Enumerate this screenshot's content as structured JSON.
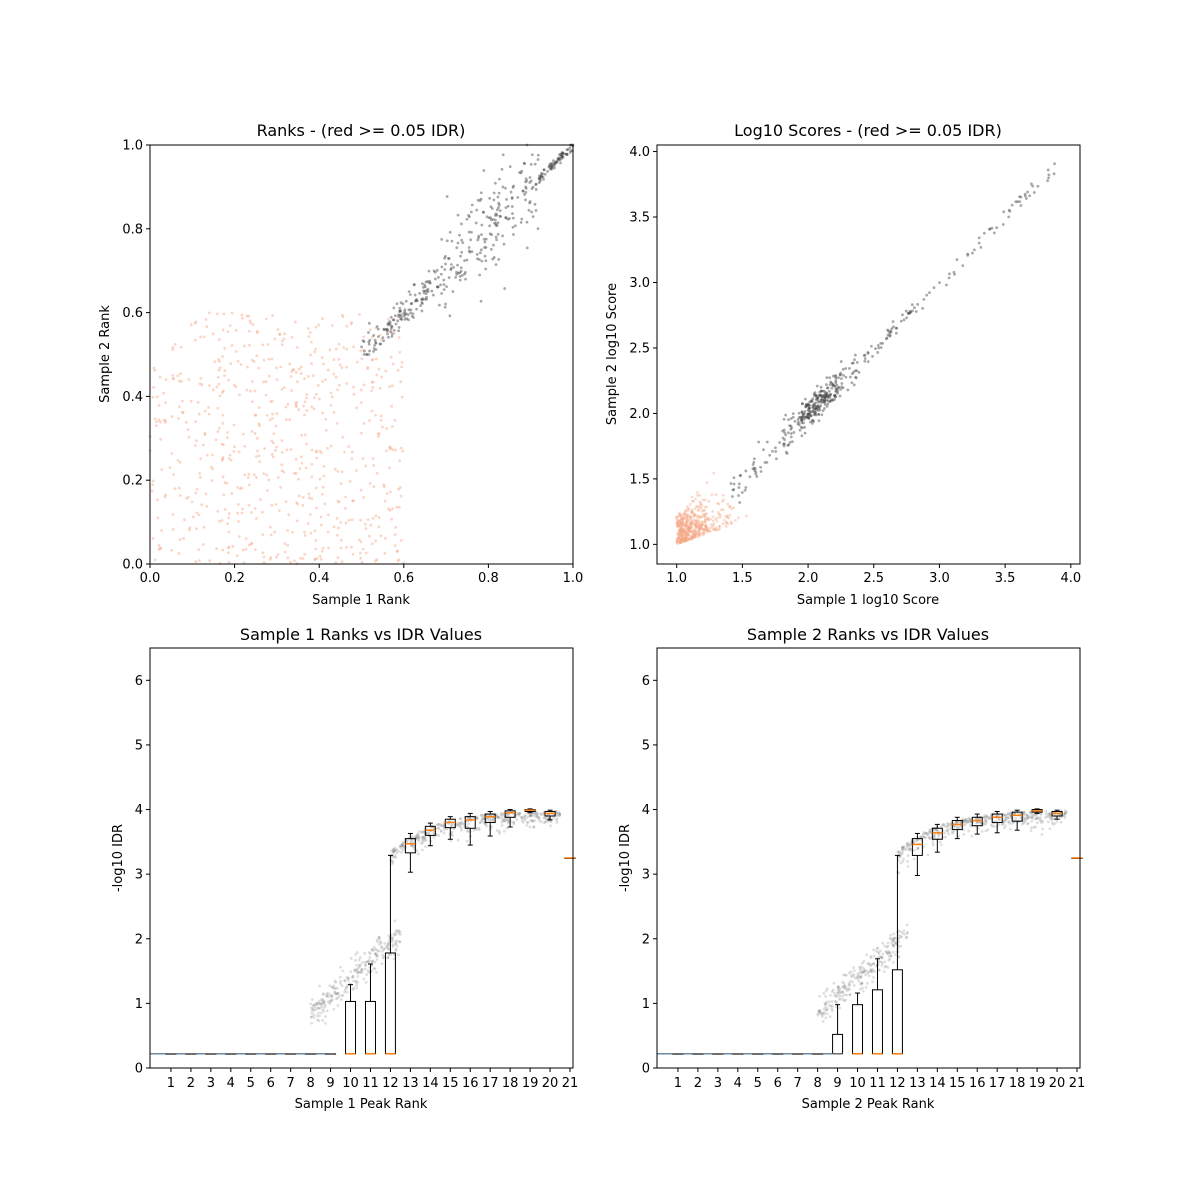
{
  "chart_data": [
    {
      "type": "scatter",
      "title": "Ranks - (red >= 0.05 IDR)",
      "xlabel": "Sample 1 Rank",
      "ylabel": "Sample 2 Rank",
      "xlim": [
        0,
        1
      ],
      "ylim": [
        0,
        1
      ],
      "xticks": [
        "0.0",
        "0.2",
        "0.4",
        "0.6",
        "0.8",
        "1.0"
      ],
      "yticks": [
        "0.0",
        "0.2",
        "0.4",
        "0.6",
        "0.8",
        "1.0"
      ],
      "grid": false,
      "colors": {
        "high_idr": "#f4a582",
        "low_idr": "#404040"
      },
      "series": [
        {
          "group": "red",
          "x_range": [
            0.0,
            0.6
          ],
          "y_range": [
            0.0,
            0.6
          ],
          "approx_count": 650
        },
        {
          "group": "black",
          "trend": "y ≈ x",
          "x_range": [
            0.5,
            1.0
          ],
          "approx_count": 420
        }
      ]
    },
    {
      "type": "scatter",
      "title": "Log10 Scores - (red >= 0.05 IDR)",
      "xlabel": "Sample 1 log10 Score",
      "ylabel": "Sample 2 log10 Score",
      "xlim": [
        0.85,
        4.07
      ],
      "ylim": [
        0.85,
        4.05
      ],
      "xticks": [
        "1.0",
        "1.5",
        "2.0",
        "2.5",
        "3.0",
        "3.5",
        "4.0"
      ],
      "yticks": [
        "1.0",
        "1.5",
        "2.0",
        "2.5",
        "3.0",
        "3.5",
        "4.0"
      ],
      "grid": false,
      "colors": {
        "high_idr": "#f4a582",
        "low_idr": "#404040"
      },
      "series": [
        {
          "group": "red",
          "center": [
            1.15,
            1.15
          ],
          "x_range": [
            1.0,
            1.6
          ],
          "y_range": [
            1.0,
            1.55
          ],
          "approx_count": 450
        },
        {
          "group": "black",
          "trend": "y ≈ x",
          "dense_center": [
            2.05,
            2.05
          ],
          "x_range": [
            1.4,
            3.9
          ],
          "approx_count": 420
        }
      ]
    },
    {
      "type": "box",
      "title": "Sample 1 Ranks vs IDR Values",
      "xlabel": "Sample 1 Peak Rank",
      "ylabel": "-log10 IDR",
      "ylim": [
        0,
        6.5
      ],
      "yticks": [
        "0",
        "1",
        "2",
        "3",
        "4",
        "5",
        "6"
      ],
      "categories": [
        "1",
        "2",
        "3",
        "4",
        "5",
        "6",
        "7",
        "8",
        "9",
        "10",
        "11",
        "12",
        "13",
        "14",
        "15",
        "16",
        "17",
        "18",
        "19",
        "20",
        "21"
      ],
      "boxes": [
        {
          "q1": 0.22,
          "median": 0.22,
          "q3": 0.22,
          "whislo": 0.22,
          "whishi": 0.22
        },
        {
          "q1": 0.22,
          "median": 0.22,
          "q3": 0.22,
          "whislo": 0.22,
          "whishi": 0.22
        },
        {
          "q1": 0.22,
          "median": 0.22,
          "q3": 0.22,
          "whislo": 0.22,
          "whishi": 0.22
        },
        {
          "q1": 0.22,
          "median": 0.22,
          "q3": 0.22,
          "whislo": 0.22,
          "whishi": 0.22
        },
        {
          "q1": 0.22,
          "median": 0.22,
          "q3": 0.22,
          "whislo": 0.22,
          "whishi": 0.22
        },
        {
          "q1": 0.22,
          "median": 0.22,
          "q3": 0.22,
          "whislo": 0.22,
          "whishi": 0.22
        },
        {
          "q1": 0.22,
          "median": 0.22,
          "q3": 0.22,
          "whislo": 0.22,
          "whishi": 0.22
        },
        {
          "q1": 0.22,
          "median": 0.22,
          "q3": 0.22,
          "whislo": 0.22,
          "whishi": 0.22
        },
        {
          "q1": 0.22,
          "median": 0.22,
          "q3": 0.22,
          "whislo": 0.22,
          "whishi": 0.22
        },
        {
          "q1": 0.22,
          "median": 0.22,
          "q3": 1.03,
          "whislo": 0.22,
          "whishi": 1.29
        },
        {
          "q1": 0.22,
          "median": 0.22,
          "q3": 1.03,
          "whislo": 0.22,
          "whishi": 1.61
        },
        {
          "q1": 0.22,
          "median": 0.22,
          "q3": 1.78,
          "whislo": 0.22,
          "whishi": 3.29
        },
        {
          "q1": 3.33,
          "median": 3.47,
          "q3": 3.55,
          "whislo": 3.03,
          "whishi": 3.63
        },
        {
          "q1": 3.6,
          "median": 3.68,
          "q3": 3.74,
          "whislo": 3.44,
          "whishi": 3.79
        },
        {
          "q1": 3.72,
          "median": 3.8,
          "q3": 3.85,
          "whislo": 3.54,
          "whishi": 3.89
        },
        {
          "q1": 3.71,
          "median": 3.84,
          "q3": 3.89,
          "whislo": 3.45,
          "whishi": 3.94
        },
        {
          "q1": 3.8,
          "median": 3.89,
          "q3": 3.93,
          "whislo": 3.59,
          "whishi": 3.97
        },
        {
          "q1": 3.88,
          "median": 3.95,
          "q3": 3.98,
          "whislo": 3.73,
          "whishi": 4.0
        },
        {
          "q1": 3.97,
          "median": 3.99,
          "q3": 4.0,
          "whislo": 3.95,
          "whishi": 4.01
        },
        {
          "q1": 3.9,
          "median": 3.94,
          "q3": 3.97,
          "whislo": 3.84,
          "whishi": 3.99
        },
        {
          "q1": 3.25,
          "median": 3.25,
          "q3": 3.25,
          "whislo": 3.25,
          "whishi": 3.25
        }
      ]
    },
    {
      "type": "box",
      "title": "Sample 2 Ranks vs IDR Values",
      "xlabel": "Sample 2 Peak Rank",
      "ylabel": "-log10 IDR",
      "ylim": [
        0,
        6.5
      ],
      "yticks": [
        "0",
        "1",
        "2",
        "3",
        "4",
        "5",
        "6"
      ],
      "categories": [
        "1",
        "2",
        "3",
        "4",
        "5",
        "6",
        "7",
        "8",
        "9",
        "10",
        "11",
        "12",
        "13",
        "14",
        "15",
        "16",
        "17",
        "18",
        "19",
        "20",
        "21"
      ],
      "boxes": [
        {
          "q1": 0.22,
          "median": 0.22,
          "q3": 0.22,
          "whislo": 0.22,
          "whishi": 0.22
        },
        {
          "q1": 0.22,
          "median": 0.22,
          "q3": 0.22,
          "whislo": 0.22,
          "whishi": 0.22
        },
        {
          "q1": 0.22,
          "median": 0.22,
          "q3": 0.22,
          "whislo": 0.22,
          "whishi": 0.22
        },
        {
          "q1": 0.22,
          "median": 0.22,
          "q3": 0.22,
          "whislo": 0.22,
          "whishi": 0.22
        },
        {
          "q1": 0.22,
          "median": 0.22,
          "q3": 0.22,
          "whislo": 0.22,
          "whishi": 0.22
        },
        {
          "q1": 0.22,
          "median": 0.22,
          "q3": 0.22,
          "whislo": 0.22,
          "whishi": 0.22
        },
        {
          "q1": 0.22,
          "median": 0.22,
          "q3": 0.22,
          "whislo": 0.22,
          "whishi": 0.22
        },
        {
          "q1": 0.22,
          "median": 0.22,
          "q3": 0.22,
          "whislo": 0.22,
          "whishi": 0.22
        },
        {
          "q1": 0.22,
          "median": 0.22,
          "q3": 0.52,
          "whislo": 0.22,
          "whishi": 0.98
        },
        {
          "q1": 0.22,
          "median": 0.22,
          "q3": 0.98,
          "whislo": 0.22,
          "whishi": 1.16
        },
        {
          "q1": 0.22,
          "median": 0.22,
          "q3": 1.21,
          "whislo": 0.22,
          "whishi": 1.69
        },
        {
          "q1": 0.22,
          "median": 0.22,
          "q3": 1.52,
          "whislo": 0.22,
          "whishi": 3.29
        },
        {
          "q1": 3.29,
          "median": 3.46,
          "q3": 3.55,
          "whislo": 2.98,
          "whishi": 3.63
        },
        {
          "q1": 3.54,
          "median": 3.64,
          "q3": 3.71,
          "whislo": 3.34,
          "whishi": 3.77
        },
        {
          "q1": 3.69,
          "median": 3.77,
          "q3": 3.83,
          "whislo": 3.55,
          "whishi": 3.88
        },
        {
          "q1": 3.75,
          "median": 3.83,
          "q3": 3.88,
          "whislo": 3.62,
          "whishi": 3.93
        },
        {
          "q1": 3.8,
          "median": 3.88,
          "q3": 3.93,
          "whislo": 3.64,
          "whishi": 3.97
        },
        {
          "q1": 3.82,
          "median": 3.91,
          "q3": 3.96,
          "whislo": 3.68,
          "whishi": 3.99
        },
        {
          "q1": 3.96,
          "median": 3.98,
          "q3": 4.0,
          "whislo": 3.94,
          "whishi": 4.01
        },
        {
          "q1": 3.9,
          "median": 3.94,
          "q3": 3.97,
          "whislo": 3.85,
          "whishi": 3.99
        },
        {
          "q1": 3.25,
          "median": 3.25,
          "q3": 3.25,
          "whislo": 3.25,
          "whishi": 3.25
        }
      ]
    }
  ]
}
